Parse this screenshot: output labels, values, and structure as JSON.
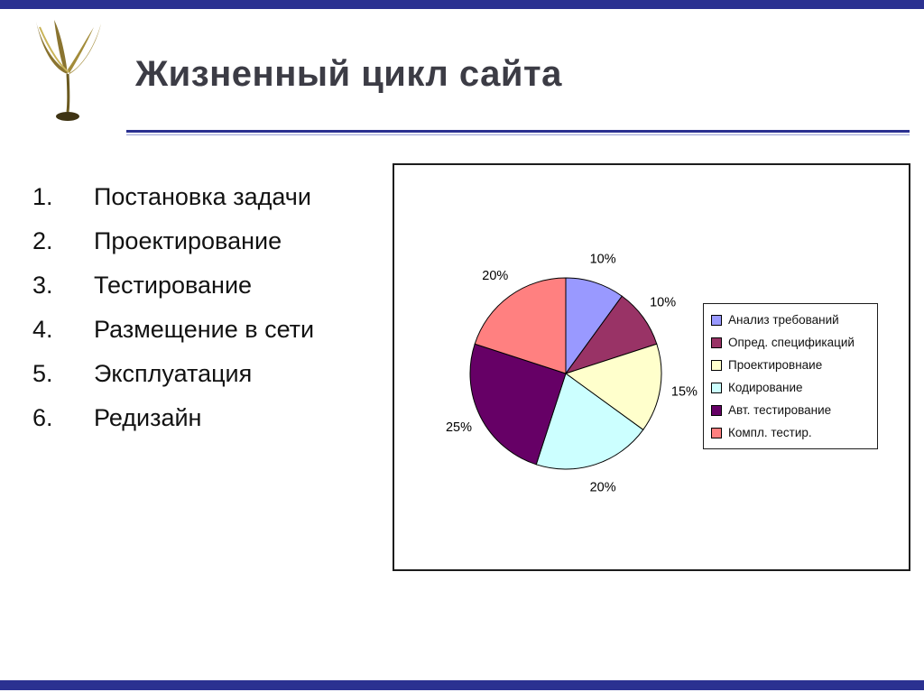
{
  "slide": {
    "title": "Жизненный цикл сайта"
  },
  "list": {
    "items": [
      {
        "num": "1.",
        "label": "Постановка задачи"
      },
      {
        "num": "2.",
        "label": "Проектирование"
      },
      {
        "num": "3.",
        "label": "Тестирование"
      },
      {
        "num": "4.",
        "label": "Размещение в сети"
      },
      {
        "num": "5.",
        "label": "Эксплуатация"
      },
      {
        "num": "6.",
        "label": "Редизайн"
      }
    ]
  },
  "chart_data": {
    "type": "pie",
    "title": "",
    "labels": [
      "Анализ требований",
      "Опред. спецификаций",
      "Проектировнаие",
      "Кодирование",
      "Авт. тестирование",
      "Компл. тестир."
    ],
    "values": [
      10,
      10,
      15,
      20,
      25,
      20
    ],
    "percent_labels": [
      "10%",
      "10%",
      "15%",
      "20%",
      "25%",
      "20%"
    ],
    "colors": [
      "#9999FF",
      "#993366",
      "#FFFFCC",
      "#CCFFFF",
      "#660066",
      "#FF8080"
    ],
    "start_angle_deg": 0,
    "direction": "clockwise",
    "legend_position": "right",
    "grid": false
  },
  "theme": {
    "accent_navy": "#2B3191",
    "title_color": "#3C3C45"
  }
}
